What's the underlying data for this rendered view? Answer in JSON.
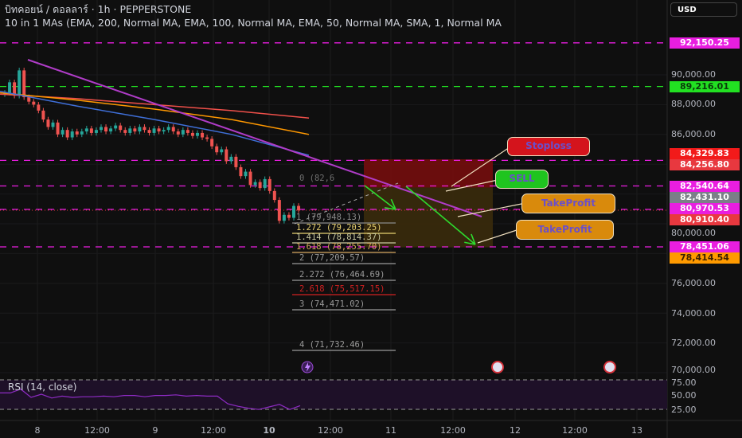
{
  "header": {
    "title": "บิทคอยน์ / ดอลลาร์ · 1h · PEPPERSTONE",
    "indicator": "10 in 1 MAs (EMA, 200, Normal MA, EMA, 100, Normal MA, EMA, 50, Normal MA, SMA, 1, Normal MA",
    "currency": "USD"
  },
  "price_axis": [
    "90,000.00",
    "88,000.00",
    "86,000.00",
    "80,000.00",
    "76,000.00",
    "74,000.00",
    "72,000.00",
    "70,000.00"
  ],
  "price_labels": [
    {
      "text": "92,150.25",
      "bg": "#e91ee0",
      "fg": "#ffffff"
    },
    {
      "text": "89,216.01",
      "bg": "#22e022",
      "fg": "#0a3a0a"
    },
    {
      "text": "84,329.83",
      "bg": "#f21a1a",
      "fg": "#ffffff"
    },
    {
      "text": "84,256.80",
      "bg": "#e8383f",
      "fg": "#ffffff"
    },
    {
      "text": "82,540.64",
      "bg": "#e91ee0",
      "fg": "#ffffff"
    },
    {
      "text": "82,431.10",
      "bg": "#7b7f88",
      "fg": "#ffffff"
    },
    {
      "text": "80,970.53",
      "bg": "#e91ee0",
      "fg": "#ffffff"
    },
    {
      "text": "80,910.40",
      "bg": "#e8383f",
      "fg": "#ffffff"
    },
    {
      "text": "78,451.06",
      "bg": "#e91ee0",
      "fg": "#ffffff"
    },
    {
      "text": "78,414.54",
      "bg": "#ff9a00",
      "fg": "#3a2000"
    }
  ],
  "time_axis": [
    "8",
    "12:00",
    "9",
    "12:00",
    "10",
    "12:00",
    "11",
    "12:00",
    "12",
    "12:00",
    "13"
  ],
  "fib_levels": [
    {
      "text": "0 (82,6",
      "color": "#6f6f6f"
    },
    {
      "text": "1 (79,948.13)",
      "color": "#8a8a8a"
    },
    {
      "text": "1.272 (79,203.25)",
      "color": "#e8d170"
    },
    {
      "text": "1.414 (78,814.37)",
      "color": "#c9c9a0"
    },
    {
      "text": "1.618 (78,255.70)",
      "color": "#d7a860"
    },
    {
      "text": "2 (77,209.57)",
      "color": "#9a9a9a"
    },
    {
      "text": "2.272 (76,464.69)",
      "color": "#9a9a9a"
    },
    {
      "text": "2.618 (75,517.15)",
      "color": "#d02020"
    },
    {
      "text": "3 (74,471.02)",
      "color": "#9a9a9a"
    },
    {
      "text": "4 (71,732.46)",
      "color": "#9a9a9a"
    }
  ],
  "callouts": {
    "stoploss": "Stoploss",
    "sell": "SELL",
    "takeprofit1": "TakeProfit",
    "takeprofit2": "TakeProfit"
  },
  "rsi": {
    "label": "RSI (14, close)",
    "axis": [
      "75.00",
      "50.00",
      "25.00"
    ],
    "values": [
      52,
      52,
      58,
      45,
      50,
      44,
      47,
      45,
      46,
      46,
      47,
      46,
      48,
      48,
      46,
      48,
      48,
      49,
      47,
      48,
      47,
      47,
      35,
      31,
      28,
      26,
      30,
      34,
      26,
      32
    ]
  },
  "colors": {
    "up": "#26a69a",
    "down": "#ef5350",
    "trendline": "#b03cc8",
    "level": "#e91ee0",
    "arrow": "#2edb2e"
  },
  "chart_data": {
    "type": "candlestick",
    "symbol": "BTCUSD",
    "interval": "1h",
    "ylim": [
      70000,
      92500
    ],
    "closes": [
      88800,
      89500,
      88600,
      90300,
      88500,
      88200,
      88000,
      87600,
      87000,
      86500,
      86800,
      86000,
      86300,
      85800,
      86200,
      86000,
      86200,
      86400,
      86100,
      86300,
      86500,
      86200,
      86400,
      86600,
      86300,
      86100,
      86400,
      86200,
      86500,
      86300,
      86100,
      86400,
      86200,
      86300,
      86500,
      86200,
      86000,
      86300,
      86100,
      85900,
      86100,
      85800,
      85700,
      85200,
      84800,
      85000,
      84200,
      84500,
      83800,
      83200,
      83500,
      82600,
      82800,
      82400,
      83000,
      82200,
      81600,
      80200,
      80600,
      80400,
      81200,
      80900
    ],
    "moving_averages": [
      {
        "color": "#f0504a",
        "values": [
          88700,
          88400,
          88000,
          87600,
          87100
        ]
      },
      {
        "color": "#ff9800",
        "values": [
          88800,
          88300,
          87700,
          87000,
          86000
        ]
      },
      {
        "color": "#3f6fd8",
        "values": [
          88900,
          87900,
          87000,
          86000,
          84600
        ]
      }
    ],
    "horizontal_levels": [
      92150.25,
      89216.01,
      84256.8,
      82540.64,
      80970.53,
      78451.06
    ],
    "position": {
      "side": "short",
      "entry": 82431.1,
      "stop": 84329.83,
      "target": 78414.54
    }
  }
}
